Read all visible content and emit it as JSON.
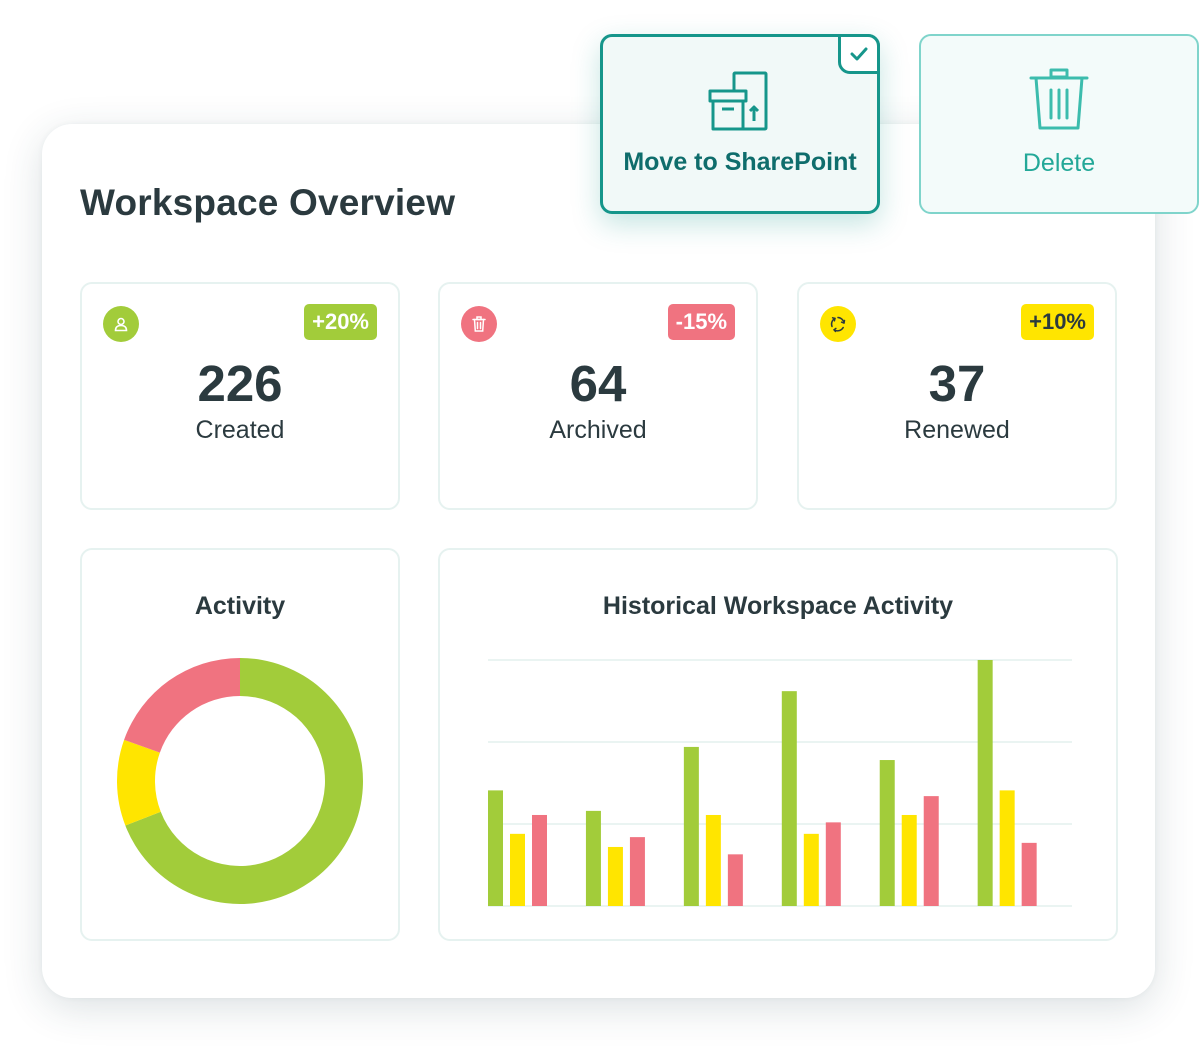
{
  "title": "Workspace Overview",
  "actions": {
    "move_label": "Move to SharePoint",
    "delete_label": "Delete"
  },
  "colors": {
    "teal_dark": "#16968b",
    "teal_light": "#7fd4cb",
    "green": "#a2cc3a",
    "yellow": "#ffe500",
    "red": "#f07380"
  },
  "stats": [
    {
      "value": "226",
      "label": "Created",
      "change": "+20%",
      "icon": "user-icon",
      "color": "#a2cc3a"
    },
    {
      "value": "64",
      "label": "Archived",
      "change": "-15%",
      "icon": "trash-icon",
      "color": "#f07380"
    },
    {
      "value": "37",
      "label": "Renewed",
      "change": "+10%",
      "icon": "recycle-icon",
      "color": "#ffe500"
    }
  ],
  "activity": {
    "title": "Activity"
  },
  "historical": {
    "title": "Historical Workspace Activity"
  },
  "chart_data": [
    {
      "type": "pie",
      "title": "Activity",
      "donut": true,
      "values": [
        226,
        37,
        64
      ],
      "colors": [
        "#a2cc3a",
        "#ffe500",
        "#f07380"
      ]
    },
    {
      "type": "bar",
      "title": "Historical Workspace Activity",
      "categories": [
        "",
        "",
        "",
        "",
        "",
        ""
      ],
      "ylim": [
        0,
        3
      ],
      "grid": true,
      "series": [
        {
          "color": "#a2cc3a",
          "values": [
            1.41,
            1.16,
            1.94,
            2.62,
            1.78,
            3.0
          ]
        },
        {
          "color": "#ffe500",
          "values": [
            0.88,
            0.72,
            1.11,
            0.88,
            1.11,
            1.41
          ]
        },
        {
          "color": "#f07380",
          "values": [
            1.11,
            0.84,
            0.63,
            1.02,
            1.34,
            0.77
          ]
        }
      ]
    }
  ]
}
